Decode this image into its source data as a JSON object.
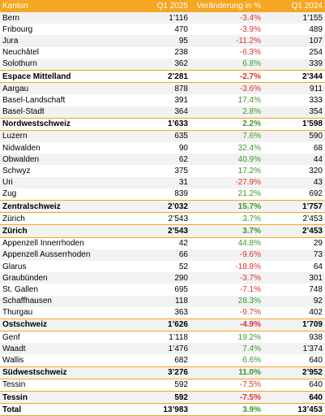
{
  "table": {
    "header": [
      "Kanton",
      "Q1 2025",
      "Veränderung in %",
      "Q1 2024"
    ],
    "rows": [
      {
        "cells": [
          "Bern",
          "1’116",
          "-3.4%",
          "1’155"
        ],
        "bold": false
      },
      {
        "cells": [
          "Fribourg",
          "470",
          "-3.9%",
          "489"
        ],
        "bold": false
      },
      {
        "cells": [
          "Jura",
          "95",
          "-11.2%",
          "107"
        ],
        "bold": false
      },
      {
        "cells": [
          "Neuchâtel",
          "238",
          "-6.3%",
          "254"
        ],
        "bold": false
      },
      {
        "cells": [
          "Solothurn",
          "362",
          "6.8%",
          "339"
        ],
        "bold": false
      },
      {
        "cells": [
          "Espace Mittelland",
          "2’281",
          "-2.7%",
          "2’344"
        ],
        "bold": true
      },
      {
        "cells": [
          "Aargau",
          "878",
          "-3.6%",
          "911"
        ],
        "bold": false
      },
      {
        "cells": [
          "Basel-Landschaft",
          "391",
          "17.4%",
          "333"
        ],
        "bold": false
      },
      {
        "cells": [
          "Basel-Stadt",
          "364",
          "2.8%",
          "354"
        ],
        "bold": false
      },
      {
        "cells": [
          "Nordwestschweiz",
          "1’633",
          "2.2%",
          "1’598"
        ],
        "bold": true
      },
      {
        "cells": [
          "Luzern",
          "635",
          "7.6%",
          "590"
        ],
        "bold": false
      },
      {
        "cells": [
          "Nidwalden",
          "90",
          "32.4%",
          "68"
        ],
        "bold": false
      },
      {
        "cells": [
          "Obwalden",
          "62",
          "40.9%",
          "44"
        ],
        "bold": false
      },
      {
        "cells": [
          "Schwyz",
          "375",
          "17.2%",
          "320"
        ],
        "bold": false
      },
      {
        "cells": [
          "Uri",
          "31",
          "-27.9%",
          "43"
        ],
        "bold": false
      },
      {
        "cells": [
          "Zug",
          "839",
          "21.2%",
          "692"
        ],
        "bold": false
      },
      {
        "cells": [
          "Zentralschweiz",
          "2’032",
          "15.7%",
          "1’757"
        ],
        "bold": true
      },
      {
        "cells": [
          "Zürich",
          "2’543",
          "3.7%",
          "2’453"
        ],
        "bold": false
      },
      {
        "cells": [
          "Zürich",
          "2’543",
          "3.7%",
          "2’453"
        ],
        "bold": true
      },
      {
        "cells": [
          "Appenzell Innerrhoden",
          "42",
          "44.8%",
          "29"
        ],
        "bold": false
      },
      {
        "cells": [
          "Appenzell Ausserrhoden",
          "66",
          "-9.6%",
          "73"
        ],
        "bold": false
      },
      {
        "cells": [
          "Glarus",
          "52",
          "-18.8%",
          "64"
        ],
        "bold": false
      },
      {
        "cells": [
          "Graubünden",
          "290",
          "-3.7%",
          "301"
        ],
        "bold": false
      },
      {
        "cells": [
          "St. Gallen",
          "695",
          "-7.1%",
          "748"
        ],
        "bold": false
      },
      {
        "cells": [
          "Schaffhausen",
          "118",
          "28.3%",
          "92"
        ],
        "bold": false
      },
      {
        "cells": [
          "Thurgau",
          "363",
          "-9.7%",
          "402"
        ],
        "bold": false
      },
      {
        "cells": [
          "Ostschweiz",
          "1’626",
          "-4.9%",
          "1’709"
        ],
        "bold": true
      },
      {
        "cells": [
          "Genf",
          "1’118",
          "19.2%",
          "938"
        ],
        "bold": false
      },
      {
        "cells": [
          "Waadt",
          "1’476",
          "7.4%",
          "1’374"
        ],
        "bold": false
      },
      {
        "cells": [
          "Wallis",
          "682",
          "6.6%",
          "640"
        ],
        "bold": false
      },
      {
        "cells": [
          "Südwestschweiz",
          "3’276",
          "11.0%",
          "2’952"
        ],
        "bold": true
      },
      {
        "cells": [
          "Tessin",
          "592",
          "-7.5%",
          "640"
        ],
        "bold": false
      },
      {
        "cells": [
          "Tessin",
          "592",
          "-7.5%",
          "640"
        ],
        "bold": true
      },
      {
        "cells": [
          "Total",
          "13’983",
          "3.9%",
          "13’453"
        ],
        "bold": true
      }
    ]
  }
}
